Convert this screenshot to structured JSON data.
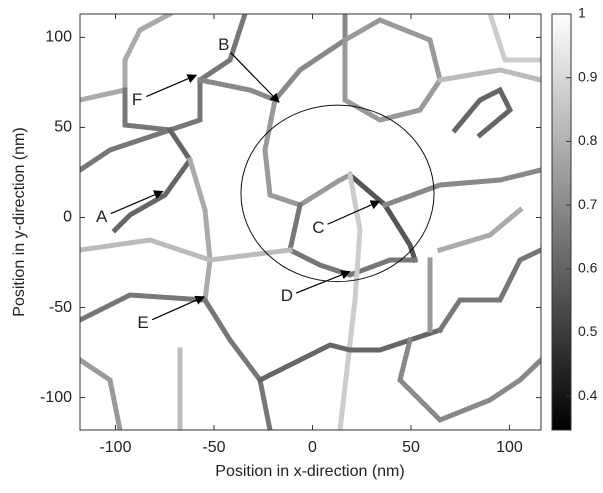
{
  "chart_data": {
    "type": "heatmap",
    "xlabel": "Position in x-direction (nm)",
    "ylabel": "Position in y-direction (nm)",
    "xlim": [
      -118,
      116
    ],
    "ylim": [
      -118,
      113
    ],
    "xticks": [
      -100,
      -50,
      0,
      50,
      100
    ],
    "yticks": [
      -100,
      -50,
      0,
      50,
      100
    ],
    "colormap": "gray",
    "clim": [
      0.347,
      1
    ],
    "cticks": [
      0.4,
      0.5,
      0.6,
      0.7,
      0.8,
      0.9,
      1
    ],
    "annotations": [
      "A",
      "B",
      "C",
      "D",
      "E",
      "F"
    ]
  }
}
